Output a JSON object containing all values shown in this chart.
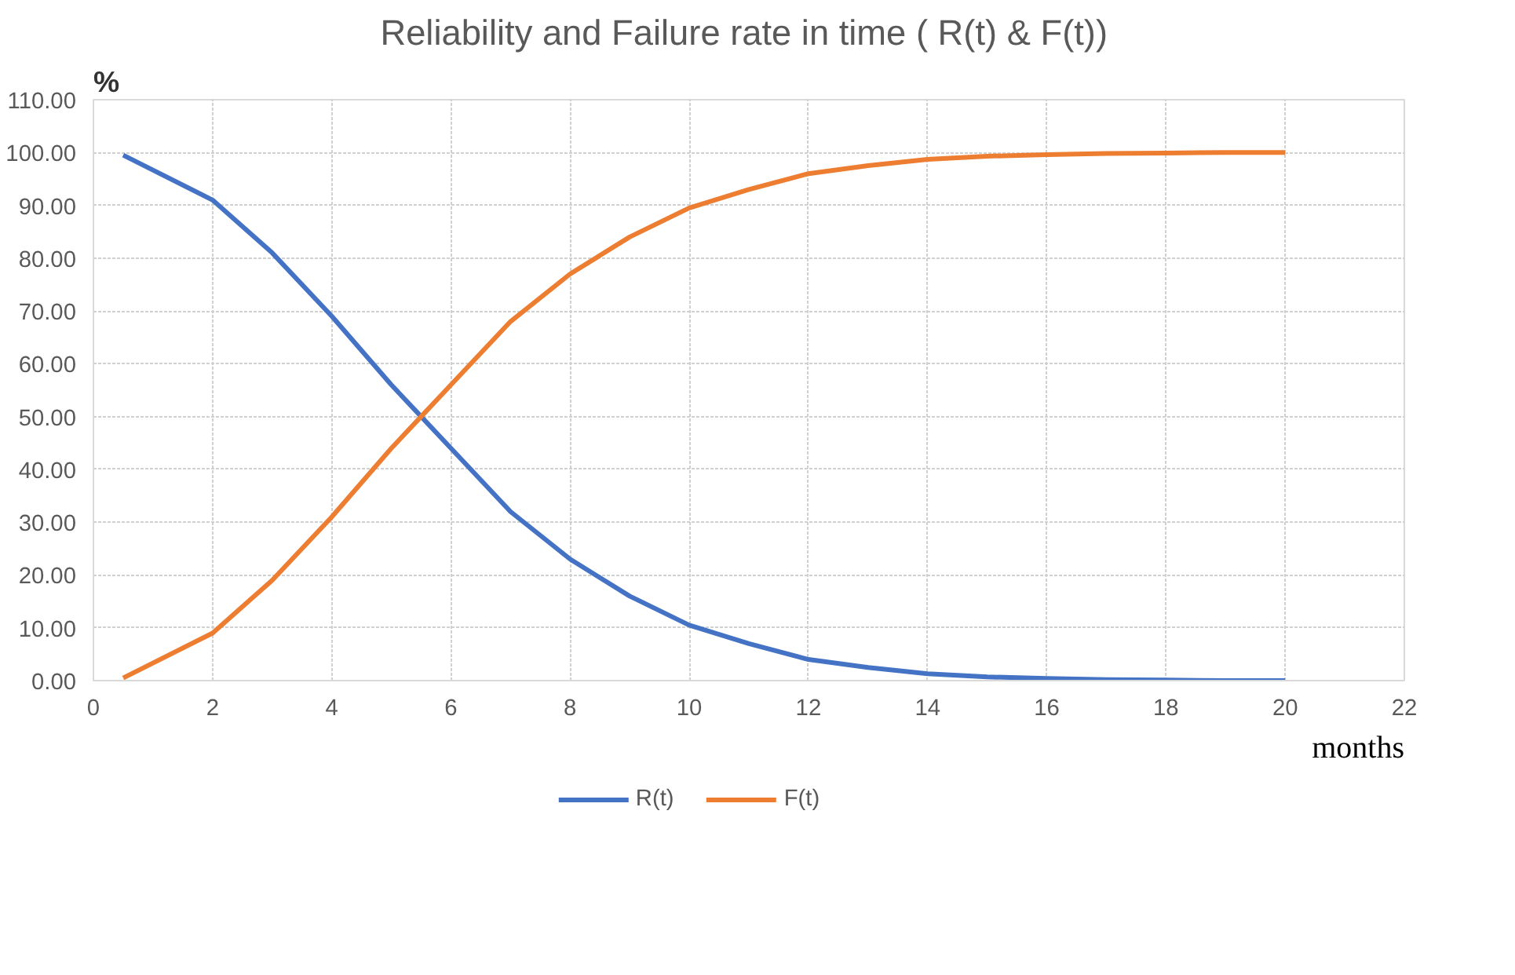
{
  "chart_data": {
    "type": "line",
    "title": "Reliability  and Failure rate in time ( R(t) & F(t))",
    "xlabel": "months",
    "ylabel": "%",
    "x": [
      0.5,
      2,
      3,
      4,
      5,
      5.5,
      6,
      7,
      8,
      9,
      10,
      11,
      12,
      13,
      14,
      15,
      16,
      17,
      18,
      19,
      20
    ],
    "series": [
      {
        "name": "R(t)",
        "color": "#4472c4",
        "values": [
          99.5,
          91,
          81,
          69,
          56,
          50,
          44,
          32,
          23,
          16,
          10.5,
          7,
          4,
          2.5,
          1.3,
          0.7,
          0.4,
          0.2,
          0.1,
          0,
          0
        ]
      },
      {
        "name": "F(t)",
        "color": "#ed7d31",
        "values": [
          0.5,
          9,
          19,
          31,
          44,
          50,
          56,
          68,
          77,
          84,
          89.5,
          93,
          96,
          97.5,
          98.7,
          99.3,
          99.6,
          99.8,
          99.9,
          100,
          100
        ]
      }
    ],
    "xlim": [
      0,
      22
    ],
    "xticks": [
      0,
      2,
      4,
      6,
      8,
      10,
      12,
      14,
      16,
      18,
      20,
      22
    ],
    "ylim": [
      0,
      110
    ],
    "yticks": [
      {
        "value": 0,
        "label": "0.00"
      },
      {
        "value": 10,
        "label": "10.00"
      },
      {
        "value": 20,
        "label": "20.00"
      },
      {
        "value": 30,
        "label": "30.00"
      },
      {
        "value": 40,
        "label": "40.00"
      },
      {
        "value": 50,
        "label": "50.00"
      },
      {
        "value": 60,
        "label": "60.00"
      },
      {
        "value": 70,
        "label": "70.00"
      },
      {
        "value": 80,
        "label": "80.00"
      },
      {
        "value": 90,
        "label": "90.00"
      },
      {
        "value": 100,
        "label": "100.00"
      },
      {
        "value": 110,
        "label": "110.00"
      }
    ],
    "grid": true,
    "legend": "bottom",
    "marker": "none",
    "line_style": "solid"
  }
}
